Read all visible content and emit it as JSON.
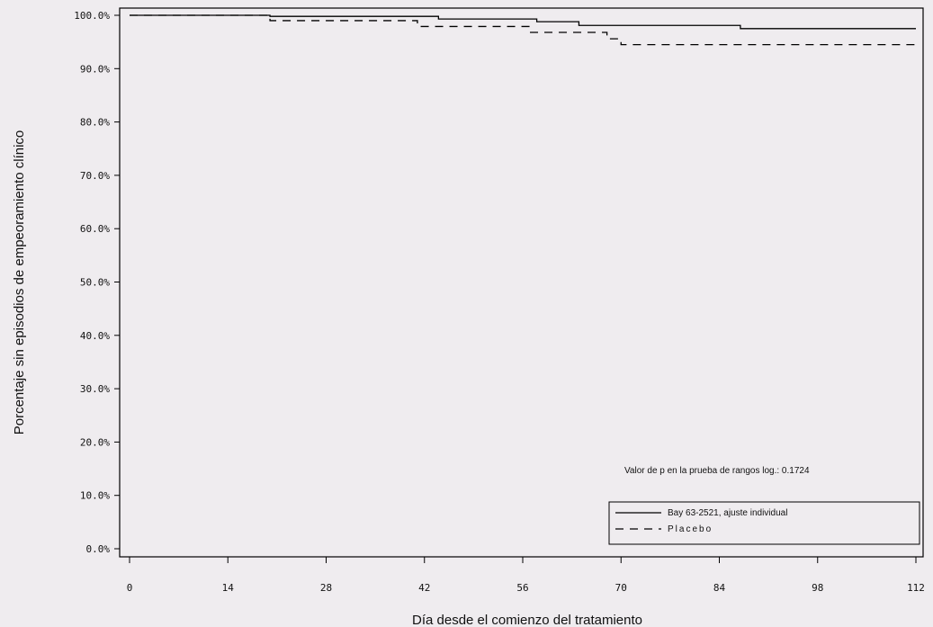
{
  "chart_data": {
    "type": "line",
    "title": "",
    "xlabel": "Día desde el comienzo del tratamiento",
    "ylabel": "Porcentaje sin episodios de empeoramiento clínico",
    "xlim": [
      0,
      112
    ],
    "ylim": [
      0,
      100
    ],
    "x_ticks": [
      0,
      14,
      28,
      42,
      56,
      70,
      84,
      98,
      112
    ],
    "x_tick_labels": [
      "0",
      "14",
      "28",
      "42",
      "56",
      "70",
      "84",
      "98",
      "112"
    ],
    "y_ticks": [
      0,
      10,
      20,
      30,
      40,
      50,
      60,
      70,
      80,
      90,
      100
    ],
    "y_tick_labels": [
      "0.0%",
      "10.0%",
      "20.0%",
      "30.0%",
      "40.0%",
      "50.0%",
      "60.0%",
      "70.0%",
      "80.0%",
      "90.0%",
      "100.0%"
    ],
    "grid": false,
    "legend_position": "bottom-right",
    "annotation": "Valor de p en la prueba de rangos log.: 0.1724",
    "series": [
      {
        "name": "Bay 63-2521, ajuste individual",
        "style": "solid",
        "color": "#000000",
        "x": [
          0,
          20,
          44,
          58,
          64,
          87,
          112
        ],
        "y": [
          100,
          99.8,
          99.3,
          98.8,
          98.1,
          97.5,
          97.5
        ]
      },
      {
        "name": "Placebo",
        "style": "dashed",
        "color": "#000000",
        "x": [
          0,
          20,
          41,
          57,
          68,
          70,
          112
        ],
        "y": [
          100,
          99.0,
          97.9,
          96.8,
          95.6,
          94.5,
          94.5
        ]
      }
    ]
  }
}
